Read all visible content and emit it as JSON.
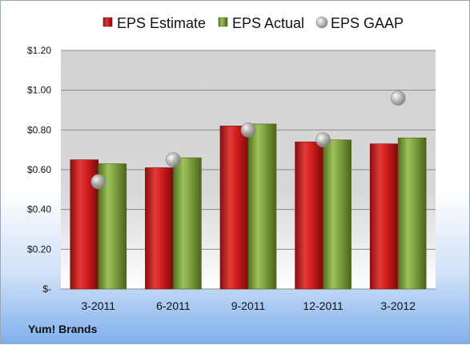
{
  "company": "Yum! Brands",
  "chart_data": {
    "type": "bar",
    "categories": [
      "3-2011",
      "6-2011",
      "9-2011",
      "12-2011",
      "3-2012"
    ],
    "series": [
      {
        "name": "EPS Estimate",
        "type": "bar",
        "color": "#cc2020",
        "values": [
          0.65,
          0.61,
          0.82,
          0.74,
          0.73
        ]
      },
      {
        "name": "EPS Actual",
        "type": "bar",
        "color": "#7fa040",
        "values": [
          0.63,
          0.66,
          0.83,
          0.75,
          0.76
        ]
      },
      {
        "name": "EPS GAAP",
        "type": "scatter",
        "color": "#b5b5b5",
        "values": [
          0.54,
          0.65,
          0.8,
          0.75,
          0.96
        ]
      }
    ],
    "yticks": [
      {
        "value": 0,
        "label": "$-"
      },
      {
        "value": 0.2,
        "label": "$0.20"
      },
      {
        "value": 0.4,
        "label": "$0.40"
      },
      {
        "value": 0.6,
        "label": "$0.60"
      },
      {
        "value": 0.8,
        "label": "$0.80"
      },
      {
        "value": 1.0,
        "label": "$1.00"
      },
      {
        "value": 1.2,
        "label": "$1.20"
      }
    ],
    "ylim": [
      0,
      1.2
    ],
    "grid": true,
    "legend_position": "top"
  }
}
